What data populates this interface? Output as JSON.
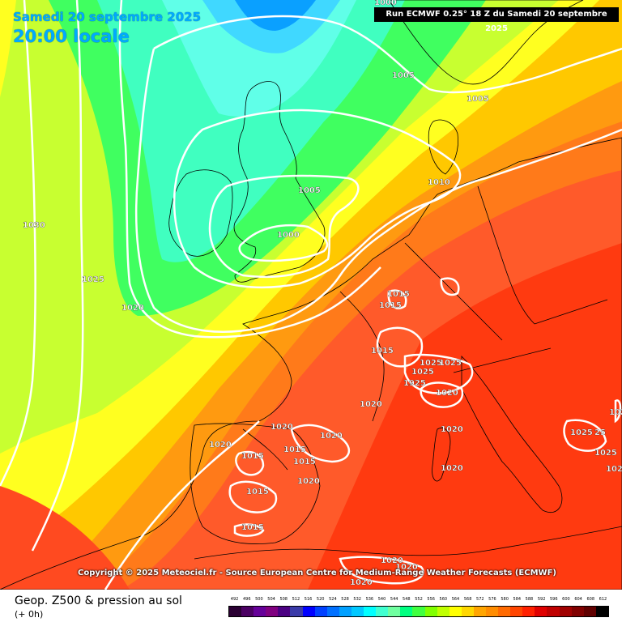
{
  "header": {
    "date": "Samedi 20 septembre 2025",
    "time": "20:00 locale",
    "run_info": "Run ECMWF 0.25° 18 Z du Samedi 20 septembre 2025"
  },
  "copyright": "Copyright © 2025 Meteociel.fr - Source European Centre for Medium-Range Weather Forecasts (ECMWF)",
  "footer": {
    "title": "Geop. Z500 & pression au sol",
    "subtitle": "(+ 0h)"
  },
  "legend": {
    "ticks": [
      "492",
      "496",
      "500",
      "504",
      "508",
      "512",
      "516",
      "520",
      "524",
      "528",
      "532",
      "536",
      "540",
      "544",
      "548",
      "552",
      "556",
      "560",
      "564",
      "568",
      "572",
      "576",
      "580",
      "584",
      "588",
      "592",
      "596",
      "600",
      "604",
      "608",
      "612"
    ],
    "colors": [
      "#2a0033",
      "#4b0063",
      "#660099",
      "#800080",
      "#4b0082",
      "#3a3aa8",
      "#0000ff",
      "#0040ff",
      "#0070ff",
      "#00a0ff",
      "#00c8ff",
      "#00ffff",
      "#40ffd0",
      "#70ffa0",
      "#00ff80",
      "#40ff40",
      "#80ff00",
      "#c0ff00",
      "#ffff00",
      "#ffd700",
      "#ffa500",
      "#ff8c00",
      "#ff6a00",
      "#ff4500",
      "#ff2000",
      "#e00000",
      "#c00000",
      "#a00000",
      "#800000",
      "#600000",
      "#000000"
    ]
  },
  "isobars": [
    {
      "value": "1000",
      "label": "1000"
    },
    {
      "value": "1000",
      "label": "1000 (top)"
    },
    {
      "value": "1005",
      "label": "1005"
    },
    {
      "value": "1010",
      "label": "1010"
    },
    {
      "value": "1015",
      "label": "1015"
    },
    {
      "value": "1020",
      "label": "1020"
    },
    {
      "value": "1025",
      "label": "1025"
    },
    {
      "value": "1030",
      "label": "1030"
    }
  ],
  "map_labels": [
    "1000",
    "1000",
    "1005",
    "1005",
    "1005",
    "1010",
    "1015",
    "1015",
    "1015",
    "1020",
    "1025",
    "1030",
    "1025",
    "1025",
    "1025",
    "1020",
    "1020",
    "1020",
    "1020",
    "1020",
    "1015",
    "1015",
    "1015",
    "1015",
    "1020",
    "1025",
    "1025",
    "1025",
    "1025",
    "1020",
    "1020",
    "1020",
    "1020",
    "1020",
    "1015"
  ],
  "colors": {
    "deep_blue": "#0090ff",
    "cyan": "#40e0ff",
    "teal": "#40ffd0",
    "green": "#40ff40",
    "yellow_green": "#c0ff00",
    "yellow": "#ffff00",
    "gold": "#ffd700",
    "orange": "#ffa500",
    "dark_orange": "#ff6a00",
    "red_orange": "#ff4500",
    "red": "#ff2000",
    "isobar": "#ffffff",
    "coast": "#000000"
  }
}
